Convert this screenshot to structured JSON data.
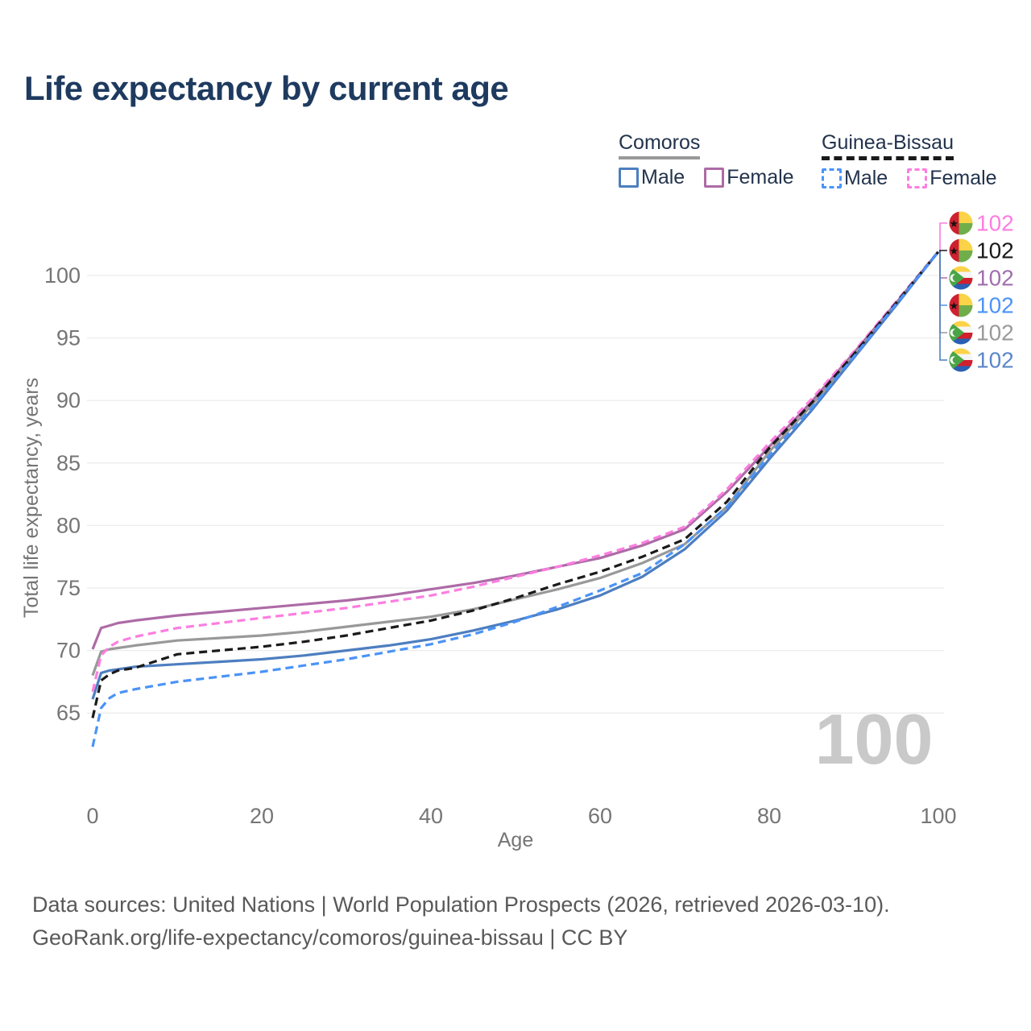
{
  "title": {
    "text": "Life expectancy by current age",
    "color": "#1e3a5f"
  },
  "legend": {
    "groups": [
      {
        "id": "comoros",
        "label": "Comoros",
        "line_style": "solid",
        "underline_color": "#999999",
        "items": [
          {
            "id": "comoros-male",
            "label": "Male",
            "color": "#4d7ec0"
          },
          {
            "id": "comoros-female",
            "label": "Female",
            "color": "#ad6ba6"
          }
        ]
      },
      {
        "id": "guinea-bissau",
        "label": "Guinea-Bissau",
        "line_style": "dashed",
        "underline_color": "#1a1a1a",
        "items": [
          {
            "id": "guinea-bissau-male",
            "label": "Male",
            "color": "#4b93f7"
          },
          {
            "id": "guinea-bissau-female",
            "label": "Female",
            "color": "#fc7ee0"
          }
        ]
      }
    ]
  },
  "watermark": {
    "text": "100",
    "color": "#c9c9c9"
  },
  "footer": {
    "line1": "Data sources: United Nations | World Population Prospects (2026, retrieved 2026-03-10).",
    "line2": "GeoRank.org/life-expectancy/comoros/guinea-bissau | CC BY"
  },
  "flags": {
    "guinea-bissau": {
      "red": "#ce2030",
      "yellow": "#fbd348",
      "green": "#6fae4a",
      "star": "#111111"
    },
    "comoros": {
      "green": "#4aa546",
      "yellow": "#fbd348",
      "white": "#f5f5f5",
      "red": "#d0202e",
      "blue": "#2a5fb4"
    }
  },
  "chart_data": {
    "type": "line",
    "title": "Life expectancy by current age",
    "xlabel": "Age",
    "ylabel": "Total life expectancy, years",
    "xlim": [
      0,
      100
    ],
    "ylim": [
      61.5,
      103.5
    ],
    "xticks": [
      0,
      20,
      40,
      60,
      80,
      100
    ],
    "yticks": [
      65,
      70,
      75,
      80,
      85,
      90,
      95,
      100
    ],
    "grid": "horizontal-only",
    "grid_color": "#ececec",
    "tick_color": "#757575",
    "x": [
      0,
      1,
      2,
      3,
      5,
      10,
      15,
      20,
      25,
      30,
      35,
      40,
      45,
      50,
      55,
      60,
      65,
      70,
      75,
      80,
      85,
      90,
      95,
      100
    ],
    "series": [
      {
        "id": "guinea-bissau-female",
        "name": "Guinea-Bissau Female",
        "country": "guinea-bissau",
        "sex": "female",
        "color": "#fc7ee0",
        "dash": true,
        "end_label": "102",
        "label_color": "#fc7ee0",
        "values": [
          66.7,
          69.6,
          70.3,
          70.7,
          71.1,
          71.8,
          72.2,
          72.6,
          73.0,
          73.4,
          73.9,
          74.4,
          75.1,
          75.9,
          76.7,
          77.6,
          78.6,
          79.9,
          82.9,
          86.6,
          90.1,
          93.9,
          97.9,
          101.9
        ]
      },
      {
        "id": "guinea-bissau-total",
        "name": "Guinea-Bissau Both sexes",
        "country": "guinea-bissau",
        "sex": "both",
        "color": "#1a1a1a",
        "dash": true,
        "end_label": "102",
        "label_color": "#1a1a1a",
        "values": [
          64.6,
          67.6,
          68.1,
          68.4,
          68.6,
          69.7,
          70.0,
          70.3,
          70.7,
          71.2,
          71.8,
          72.4,
          73.2,
          74.2,
          75.3,
          76.3,
          77.5,
          78.9,
          81.9,
          86.2,
          89.8,
          93.7,
          97.8,
          101.9
        ]
      },
      {
        "id": "comoros-female",
        "name": "Comoros Female",
        "country": "comoros",
        "sex": "female",
        "color": "#ad6ba6",
        "dash": false,
        "end_label": "102",
        "label_color": "#a06fae",
        "values": [
          70.1,
          71.8,
          72.0,
          72.2,
          72.4,
          72.8,
          73.1,
          73.4,
          73.7,
          74.0,
          74.4,
          74.9,
          75.4,
          76.0,
          76.7,
          77.4,
          78.4,
          79.7,
          82.7,
          86.3,
          89.9,
          93.8,
          97.8,
          101.9
        ]
      },
      {
        "id": "guinea-bissau-male",
        "name": "Guinea-Bissau Male",
        "country": "guinea-bissau",
        "sex": "male",
        "color": "#4b93f7",
        "dash": true,
        "end_label": "102",
        "label_color": "#4b93f7",
        "values": [
          62.3,
          65.4,
          66.2,
          66.6,
          66.9,
          67.5,
          67.9,
          68.3,
          68.8,
          69.3,
          69.9,
          70.5,
          71.3,
          72.3,
          73.5,
          74.8,
          76.2,
          78.5,
          81.5,
          85.6,
          89.4,
          93.5,
          97.7,
          101.9
        ]
      },
      {
        "id": "comoros-total",
        "name": "Comoros Both sexes",
        "country": "comoros",
        "sex": "both",
        "color": "#999999",
        "dash": false,
        "end_label": "102",
        "label_color": "#9a9a9a",
        "values": [
          68.0,
          69.9,
          70.1,
          70.2,
          70.4,
          70.8,
          71.0,
          71.2,
          71.5,
          71.9,
          72.3,
          72.7,
          73.3,
          74.1,
          74.9,
          75.8,
          77.0,
          78.5,
          81.5,
          85.9,
          89.6,
          93.6,
          97.7,
          101.9
        ]
      },
      {
        "id": "comoros-male",
        "name": "Comoros Male",
        "country": "comoros",
        "sex": "male",
        "color": "#4d7ec0",
        "dash": false,
        "end_label": "102",
        "label_color": "#5b87c9",
        "values": [
          66.1,
          68.2,
          68.4,
          68.5,
          68.7,
          68.9,
          69.1,
          69.3,
          69.6,
          70.0,
          70.4,
          70.9,
          71.6,
          72.4,
          73.3,
          74.4,
          75.9,
          78.1,
          81.2,
          85.3,
          89.2,
          93.4,
          97.6,
          101.9
        ]
      }
    ]
  }
}
